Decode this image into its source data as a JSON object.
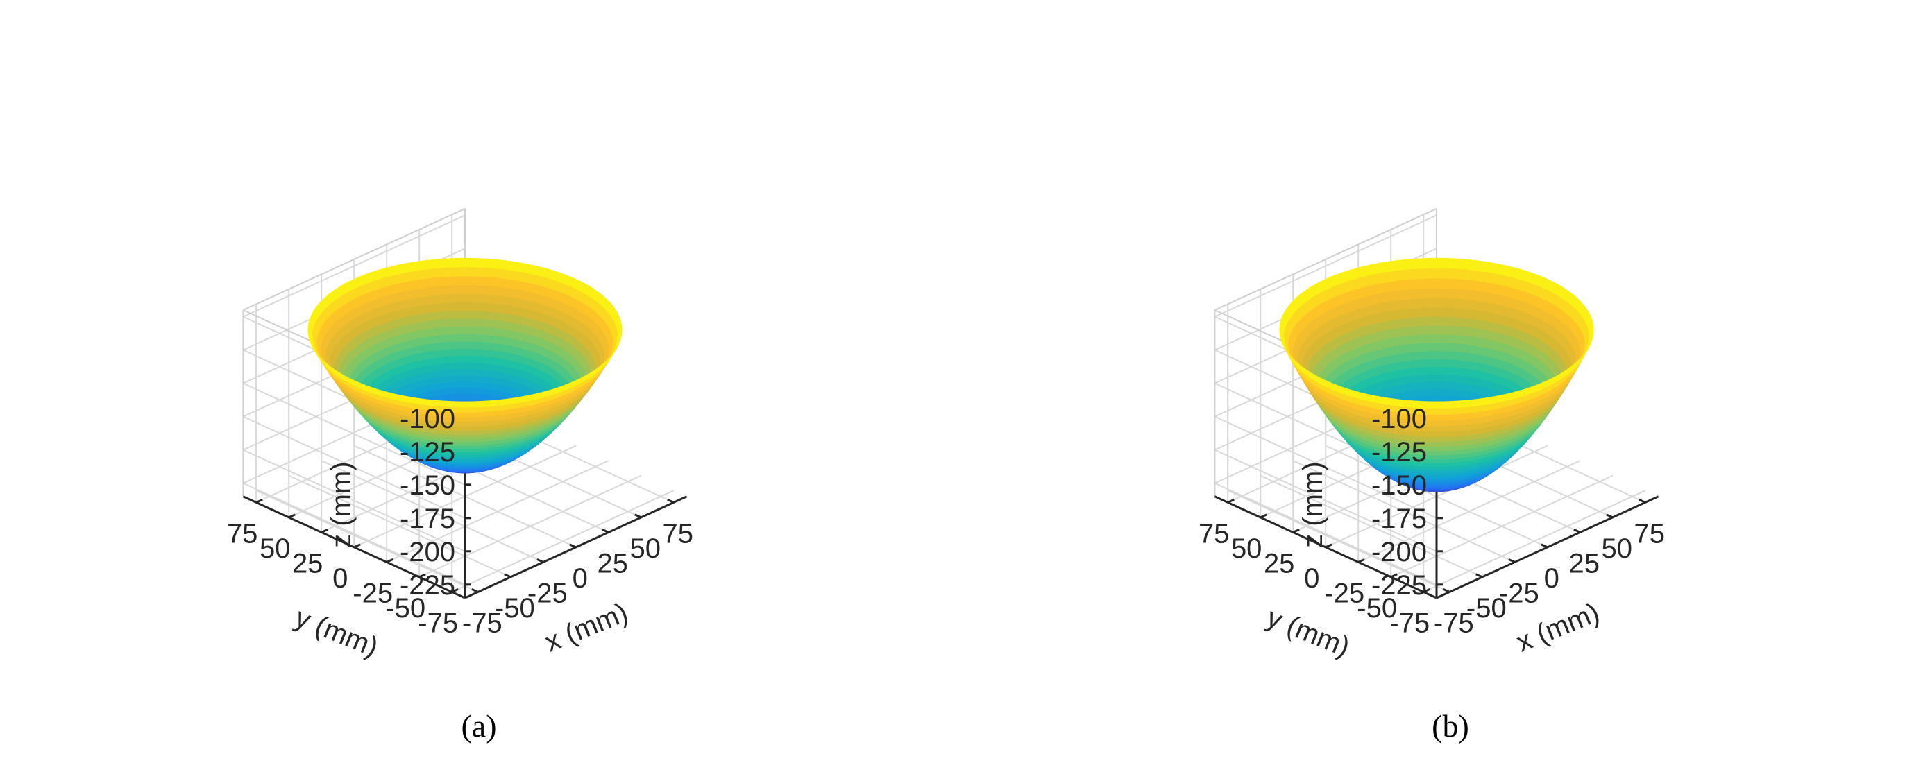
{
  "chart_data": [
    {
      "type": "surface",
      "panel_label": "(a)",
      "xlabel": "x (mm)",
      "ylabel": "y (mm)",
      "zlabel": "z (mm)",
      "xticks": [
        "-75",
        "-50",
        "-25",
        "0",
        "25",
        "50",
        "75"
      ],
      "yticks": [
        "75",
        "50",
        "25",
        "0",
        "-25",
        "-50",
        "-75"
      ],
      "zticks": [
        "-100",
        "-125",
        "-150",
        "-175",
        "-200",
        "-225"
      ],
      "xlim": [
        -85,
        85
      ],
      "ylim": [
        -85,
        85
      ],
      "zlim": [
        -235,
        -95
      ],
      "grid": true,
      "surface": {
        "shape": "paraboloid bowl",
        "rim_radius": 85,
        "rim_z": -110,
        "bottom_z": -210,
        "colormap": "parula"
      }
    },
    {
      "type": "surface",
      "panel_label": "(b)",
      "xlabel": "x (mm)",
      "ylabel": "y (mm)",
      "zlabel": "z (mm)",
      "xticks": [
        "-75",
        "-50",
        "-25",
        "0",
        "25",
        "50",
        "75"
      ],
      "yticks": [
        "75",
        "50",
        "25",
        "0",
        "-25",
        "-50",
        "-75"
      ],
      "zticks": [
        "-100",
        "-125",
        "-150",
        "-175",
        "-200",
        "-225"
      ],
      "xlim": [
        -85,
        85
      ],
      "ylim": [
        -85,
        85
      ],
      "zlim": [
        -235,
        -95
      ],
      "grid": true,
      "surface": {
        "shape": "paraboloid bowl",
        "rim_radius": 85,
        "rim_z": -110,
        "bottom_z": -225,
        "colormap": "parula"
      }
    }
  ],
  "colors": {
    "colormap": [
      "#3d26a8",
      "#2570f5",
      "#10a3d6",
      "#1ec1a3",
      "#7ac868",
      "#d6b833",
      "#fdc02a",
      "#f9fb0e"
    ],
    "axis": "#262626",
    "grid": "#d9d9d9"
  }
}
